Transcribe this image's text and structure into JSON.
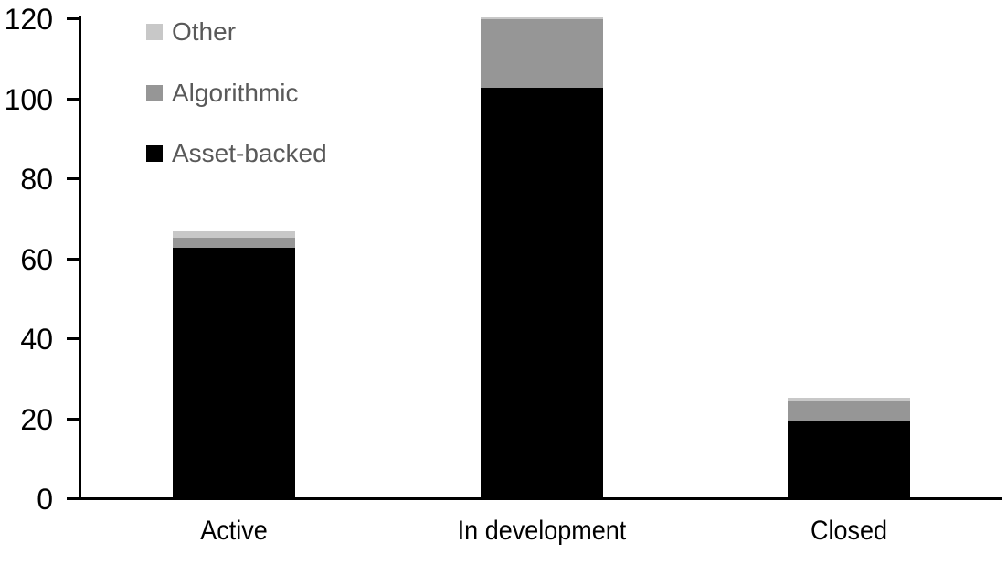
{
  "page": {
    "background": "#ffffff"
  },
  "chart_data": {
    "type": "bar",
    "stacked": true,
    "title": "",
    "xlabel": "",
    "ylabel": "",
    "categories": [
      "Active",
      "In development",
      "Closed"
    ],
    "series": [
      {
        "name": "Asset-backed",
        "color": "#000000",
        "values": [
          62.5,
          102.5,
          19
        ]
      },
      {
        "name": "Algorithmic",
        "color": "#969696",
        "values": [
          2.5,
          17,
          5
        ]
      },
      {
        "name": "Other",
        "color": "#c8c8c8",
        "values": [
          1.5,
          0.5,
          1
        ]
      }
    ],
    "totals": [
      66.5,
      120,
      25
    ],
    "ylim": [
      0,
      120
    ],
    "yticks": [
      0,
      20,
      40,
      60,
      80,
      100,
      120
    ],
    "grid": false,
    "legend": {
      "position": "top-left",
      "items": [
        {
          "label": "Other",
          "color": "#c8c8c8"
        },
        {
          "label": "Algorithmic",
          "color": "#969696"
        },
        {
          "label": "Asset-backed",
          "color": "#000000"
        }
      ]
    },
    "axis_color": "#000000",
    "tick_label_color": "#000000",
    "legend_text_color": "#595959"
  }
}
